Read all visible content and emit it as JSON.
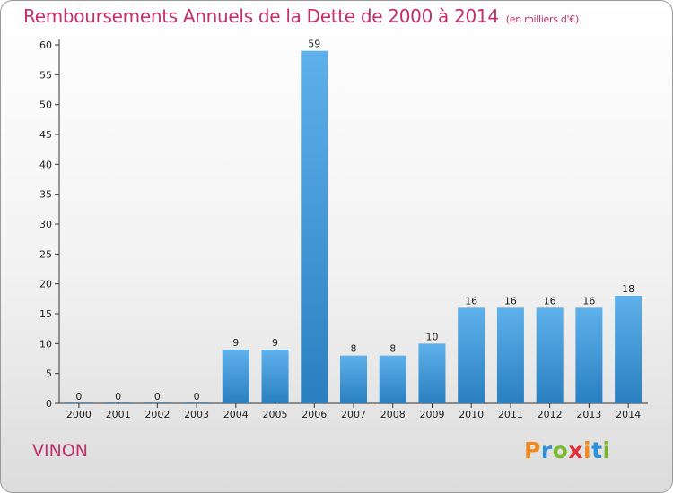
{
  "chart_data": {
    "type": "bar",
    "title": "Remboursements Annuels de la Dette de 2000 à 2014",
    "subtitle": "(en milliers d'€)",
    "categories": [
      "2000",
      "2001",
      "2002",
      "2003",
      "2004",
      "2005",
      "2006",
      "2007",
      "2008",
      "2009",
      "2010",
      "2011",
      "2012",
      "2013",
      "2014"
    ],
    "values": [
      0,
      0,
      0,
      0,
      9,
      9,
      59,
      8,
      8,
      10,
      16,
      16,
      16,
      16,
      18
    ],
    "ylim": [
      0,
      60
    ],
    "yticks": [
      0,
      5,
      10,
      15,
      20,
      25,
      30,
      35,
      40,
      45,
      50,
      55,
      60
    ],
    "grid": false,
    "bar_color": "#3e94d6",
    "xlabel": "",
    "ylabel": ""
  },
  "footer": {
    "town": "VINON",
    "logo": "Proxiti",
    "logo_colors": [
      "#f08a1c",
      "#2f8fd8",
      "#7ab82e",
      "#e0303a",
      "#f08a1c",
      "#2f8fd8",
      "#7ab82e"
    ]
  },
  "colors": {
    "accent": "#c0306a"
  }
}
